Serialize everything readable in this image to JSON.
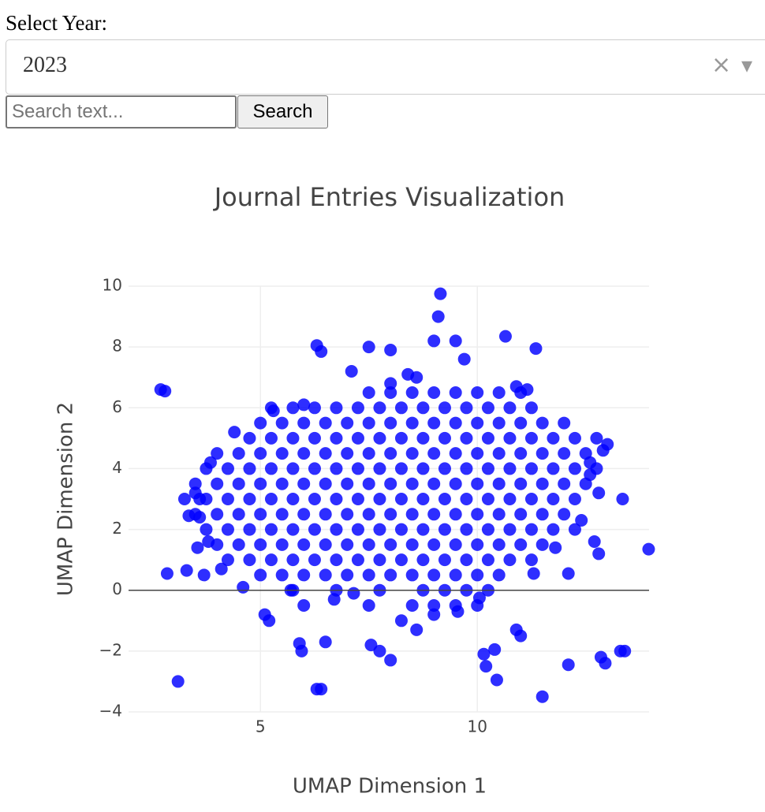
{
  "form": {
    "year_label": "Select Year:",
    "year_value": "2023",
    "clear_icon": "×",
    "dropdown_icon": "▾",
    "search_placeholder": "Search text...",
    "search_button": "Search"
  },
  "chart_data": {
    "type": "scatter",
    "title": "Journal Entries Visualization",
    "x_label": "UMAP Dimension 1",
    "y_label": "UMAP Dimension 2",
    "color": "#0000ff",
    "grid": true,
    "xlim": [
      1.96,
      13.96
    ],
    "xticks": [
      5,
      10
    ],
    "ylim": [
      -4,
      10
    ],
    "yticks": [
      {
        "value": -4,
        "label": "−4"
      },
      {
        "value": -2,
        "label": "−2"
      },
      0,
      2,
      4,
      6,
      8,
      10
    ],
    "x": [
      7.5,
      8,
      8.5,
      9,
      9.5,
      10,
      10.5,
      11,
      5.25,
      5.75,
      6.25,
      6.75,
      7.25,
      7.75,
      8.25,
      8.75,
      9.25,
      9.75,
      10.25,
      10.75,
      11.25,
      5,
      5.5,
      6,
      6.5,
      7,
      7.5,
      8,
      8.5,
      9,
      9.5,
      10,
      10.5,
      11,
      11.5,
      12,
      4.75,
      5.25,
      5.75,
      6.25,
      6.75,
      7.25,
      7.75,
      8.25,
      8.75,
      9.25,
      9.75,
      10.25,
      10.75,
      11.25,
      11.75,
      12.25,
      12.75,
      4,
      4.5,
      5,
      5.5,
      6,
      6.5,
      7,
      7.5,
      8,
      8.5,
      9,
      9.5,
      10,
      10.5,
      11,
      11.5,
      12,
      12.5,
      3.75,
      4.25,
      4.75,
      5.25,
      5.75,
      6.25,
      6.75,
      7.25,
      7.75,
      8.25,
      8.75,
      9.25,
      9.75,
      10.25,
      10.75,
      11.25,
      11.75,
      12.25,
      12.75,
      3.5,
      4,
      4.5,
      5,
      5.5,
      6,
      6.5,
      7,
      7.5,
      8,
      8.5,
      9,
      9.5,
      10,
      10.5,
      11,
      11.5,
      12,
      12.5,
      3.25,
      3.75,
      4.25,
      4.75,
      5.25,
      5.75,
      6.25,
      6.75,
      7.25,
      7.75,
      8.25,
      8.75,
      9.25,
      9.75,
      10.25,
      10.75,
      11.25,
      11.75,
      12.25,
      3.5,
      4,
      4.5,
      5,
      5.5,
      6,
      6.5,
      7,
      7.5,
      8,
      8.5,
      9,
      9.5,
      10,
      10.5,
      11,
      11.5,
      12,
      3.75,
      4.25,
      4.75,
      5.25,
      5.75,
      6.25,
      6.75,
      7.25,
      7.75,
      8.25,
      8.75,
      9.25,
      9.75,
      10.25,
      10.75,
      11.25,
      11.75,
      12.25,
      4,
      4.5,
      5,
      5.5,
      6,
      6.5,
      7,
      7.5,
      8,
      8.5,
      9,
      9.5,
      10,
      10.5,
      11,
      11.5,
      4.25,
      4.75,
      5.25,
      5.75,
      6.25,
      6.75,
      7.25,
      7.75,
      8.25,
      8.75,
      9.25,
      9.75,
      10.25,
      10.75,
      11.25,
      5,
      5.5,
      6,
      6.5,
      7,
      7.5,
      8,
      8.5,
      9,
      9.5,
      10,
      10.5,
      5.75,
      6.75,
      7.75,
      8.75,
      9.25,
      9.75,
      10.25,
      6,
      7.5,
      8.5,
      9,
      9.5,
      10,
      2.7,
      2.8,
      3.1,
      2.85,
      3.3,
      3.35,
      3.6,
      3.7,
      6.3,
      6.4,
      6.3,
      6.4,
      7.5,
      8.0,
      9.15,
      9.1,
      9.0,
      9.5,
      9.7,
      10.65,
      11.35,
      12.1,
      11.5,
      13.3,
      13.4,
      12.85,
      12.95,
      13.35,
      12.8,
      13.95,
      10.45,
      10.2,
      10.15,
      10.4,
      10.9,
      11.0,
      7.55,
      7.75,
      8.0,
      6.5,
      5.9,
      5.95,
      5.2,
      5.1,
      8.6,
      8.25,
      12.1,
      11.3,
      13.0,
      12.9,
      12.6,
      12.6,
      12.7,
      12.8,
      12.4,
      11.8,
      4.6,
      4.1,
      3.55,
      3.8,
      3.6,
      3.5,
      3.85,
      4.4,
      5.3,
      6.0,
      7.1,
      8.0,
      8.4,
      8.6,
      11.15,
      10.9,
      5.7,
      9.0,
      9.55,
      7.15,
      6.7,
      10.05
    ],
    "values": [
      6.5,
      6.5,
      6.5,
      6.5,
      6.5,
      6.5,
      6.5,
      6.5,
      6,
      6,
      6,
      6,
      6,
      6,
      6,
      6,
      6,
      6,
      6,
      6,
      6,
      5.5,
      5.5,
      5.5,
      5.5,
      5.5,
      5.5,
      5.5,
      5.5,
      5.5,
      5.5,
      5.5,
      5.5,
      5.5,
      5.5,
      5.5,
      5,
      5,
      5,
      5,
      5,
      5,
      5,
      5,
      5,
      5,
      5,
      5,
      5,
      5,
      5,
      5,
      5,
      4.5,
      4.5,
      4.5,
      4.5,
      4.5,
      4.5,
      4.5,
      4.5,
      4.5,
      4.5,
      4.5,
      4.5,
      4.5,
      4.5,
      4.5,
      4.5,
      4.5,
      4.5,
      4,
      4,
      4,
      4,
      4,
      4,
      4,
      4,
      4,
      4,
      4,
      4,
      4,
      4,
      4,
      4,
      4,
      4,
      4,
      3.5,
      3.5,
      3.5,
      3.5,
      3.5,
      3.5,
      3.5,
      3.5,
      3.5,
      3.5,
      3.5,
      3.5,
      3.5,
      3.5,
      3.5,
      3.5,
      3.5,
      3.5,
      3.5,
      3,
      3,
      3,
      3,
      3,
      3,
      3,
      3,
      3,
      3,
      3,
      3,
      3,
      3,
      3,
      3,
      3,
      3,
      3,
      2.5,
      2.5,
      2.5,
      2.5,
      2.5,
      2.5,
      2.5,
      2.5,
      2.5,
      2.5,
      2.5,
      2.5,
      2.5,
      2.5,
      2.5,
      2.5,
      2.5,
      2.5,
      2,
      2,
      2,
      2,
      2,
      2,
      2,
      2,
      2,
      2,
      2,
      2,
      2,
      2,
      2,
      2,
      2,
      2,
      1.5,
      1.5,
      1.5,
      1.5,
      1.5,
      1.5,
      1.5,
      1.5,
      1.5,
      1.5,
      1.5,
      1.5,
      1.5,
      1.5,
      1.5,
      1.5,
      1,
      1,
      1,
      1,
      1,
      1,
      1,
      1,
      1,
      1,
      1,
      1,
      1,
      1,
      1,
      0.5,
      0.5,
      0.5,
      0.5,
      0.5,
      0.5,
      0.5,
      0.5,
      0.5,
      0.5,
      0.5,
      0.5,
      0,
      0,
      0,
      0,
      0,
      0,
      0,
      -0.5,
      -0.5,
      -0.5,
      -0.5,
      -0.5,
      -0.5,
      6.6,
      6.55,
      -3.0,
      0.55,
      0.65,
      2.45,
      2.4,
      0.5,
      -3.25,
      -3.25,
      8.05,
      7.85,
      8,
      7.9,
      9.75,
      9.0,
      8.2,
      8.2,
      7.6,
      8.35,
      7.95,
      -2.45,
      -3.5,
      -2.0,
      -2.0,
      -2.2,
      -2.4,
      3.0,
      3.2,
      1.35,
      -2.95,
      -2.5,
      -2.1,
      -1.95,
      -1.3,
      -1.5,
      -1.8,
      -2.0,
      -2.3,
      -1.7,
      -1.75,
      -2.0,
      -1.0,
      -0.8,
      -1.3,
      -1.0,
      0.55,
      0.55,
      4.8,
      4.6,
      4.2,
      3.8,
      1.6,
      1.2,
      2.3,
      1.4,
      0.1,
      0.7,
      1.4,
      1.6,
      3.0,
      3.2,
      4.2,
      5.2,
      5.9,
      6.1,
      7.2,
      6.8,
      7.1,
      7.0,
      6.6,
      6.7,
      0.0,
      -0.8,
      -0.7,
      -0.1,
      -0.3,
      -0.25
    ]
  }
}
